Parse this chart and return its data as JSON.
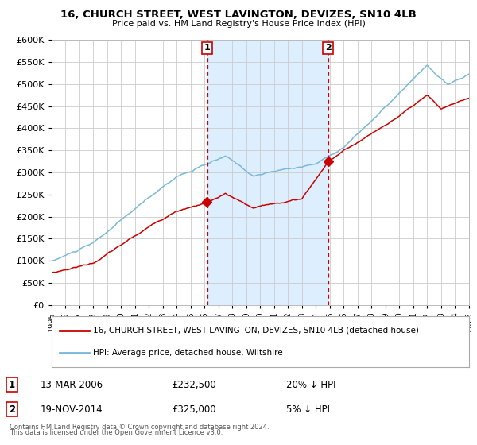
{
  "title": "16, CHURCH STREET, WEST LAVINGTON, DEVIZES, SN10 4LB",
  "subtitle": "Price paid vs. HM Land Registry's House Price Index (HPI)",
  "legend_line1": "16, CHURCH STREET, WEST LAVINGTON, DEVIZES, SN10 4LB (detached house)",
  "legend_line2": "HPI: Average price, detached house, Wiltshire",
  "transaction1_date": "13-MAR-2006",
  "transaction1_price": 232500,
  "transaction1_label": "20% ↓ HPI",
  "transaction2_date": "19-NOV-2014",
  "transaction2_price": 325000,
  "transaction2_label": "5% ↓ HPI",
  "footer": "Contains HM Land Registry data © Crown copyright and database right 2024.\nThis data is licensed under the Open Government Licence v3.0.",
  "hpi_color": "#7ab8d9",
  "price_color": "#cc0000",
  "shading_color": "#ddeeff",
  "background_color": "#ffffff",
  "grid_color": "#cccccc",
  "ylim_min": 0,
  "ylim_max": 600000,
  "ytick_step": 50000,
  "t1_x": 2006.2,
  "t2_x": 2014.88,
  "xmin": 1995,
  "xmax": 2025
}
